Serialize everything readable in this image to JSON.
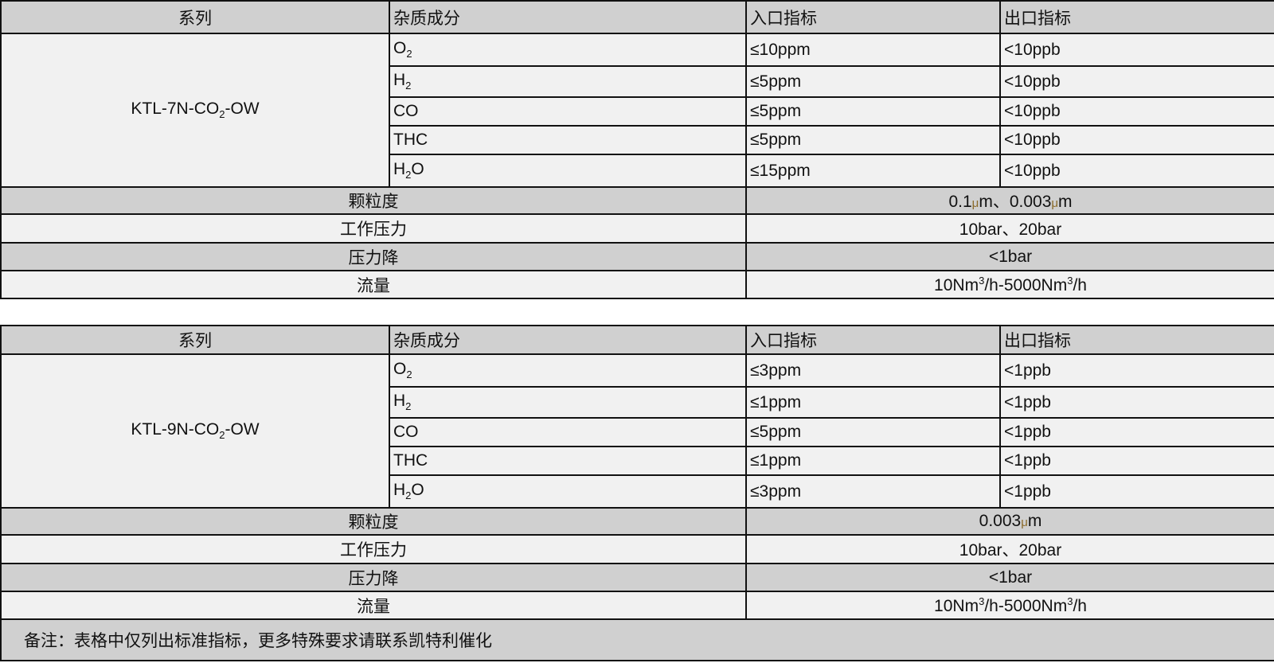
{
  "tables": [
    {
      "headers": [
        "系列",
        "杂质成分",
        "入口指标",
        "出口指标"
      ],
      "series": [
        {
          "t": "KTL-7N-CO"
        },
        {
          "t": "2",
          "s": "sub"
        },
        {
          "t": "-OW"
        }
      ],
      "impurities": [
        {
          "name": [
            {
              "t": "O"
            },
            {
              "t": "2",
              "s": "sub"
            }
          ],
          "inlet": "≤10ppm",
          "outlet": "<10ppb"
        },
        {
          "name": [
            {
              "t": "H"
            },
            {
              "t": "2",
              "s": "sub"
            }
          ],
          "inlet": "≤5ppm",
          "outlet": "<10ppb"
        },
        {
          "name": [
            {
              "t": "CO"
            }
          ],
          "inlet": "≤5ppm",
          "outlet": "<10ppb"
        },
        {
          "name": [
            {
              "t": "THC"
            }
          ],
          "inlet": "≤5ppm",
          "outlet": "<10ppb"
        },
        {
          "name": [
            {
              "t": "H"
            },
            {
              "t": "2",
              "s": "sub"
            },
            {
              "t": "O"
            }
          ],
          "inlet": "≤15ppm",
          "outlet": "<10ppb"
        }
      ],
      "specs": [
        {
          "label": "颗粒度",
          "value": [
            {
              "t": "0.1"
            },
            {
              "t": "μ",
              "s": "mu"
            },
            {
              "t": "m、0.003"
            },
            {
              "t": "μ",
              "s": "mu"
            },
            {
              "t": "m"
            }
          ]
        },
        {
          "label": "工作压力",
          "value": [
            {
              "t": "10bar、20bar"
            }
          ]
        },
        {
          "label": "压力降",
          "value": [
            {
              "t": "<1bar"
            }
          ]
        },
        {
          "label": "流量",
          "value": [
            {
              "t": "10Nm"
            },
            {
              "t": "3",
              "s": "sup"
            },
            {
              "t": "/h-5000Nm"
            },
            {
              "t": "3",
              "s": "sup"
            },
            {
              "t": "/h"
            }
          ]
        }
      ]
    },
    {
      "headers": [
        "系列",
        "杂质成分",
        "入口指标",
        "出口指标"
      ],
      "series": [
        {
          "t": "KTL-9N-CO"
        },
        {
          "t": "2",
          "s": "sub"
        },
        {
          "t": "-OW"
        }
      ],
      "impurities": [
        {
          "name": [
            {
              "t": "O"
            },
            {
              "t": "2",
              "s": "sub"
            }
          ],
          "inlet": "≤3ppm",
          "outlet": "<1ppb"
        },
        {
          "name": [
            {
              "t": "H"
            },
            {
              "t": "2",
              "s": "sub"
            }
          ],
          "inlet": "≤1ppm",
          "outlet": "<1ppb"
        },
        {
          "name": [
            {
              "t": "CO"
            }
          ],
          "inlet": "≤5ppm",
          "outlet": "<1ppb"
        },
        {
          "name": [
            {
              "t": "THC"
            }
          ],
          "inlet": "≤1ppm",
          "outlet": "<1ppb"
        },
        {
          "name": [
            {
              "t": "H"
            },
            {
              "t": "2",
              "s": "sub"
            },
            {
              "t": "O"
            }
          ],
          "inlet": "≤3ppm",
          "outlet": "<1ppb"
        }
      ],
      "specs": [
        {
          "label": "颗粒度",
          "value": [
            {
              "t": "0.003"
            },
            {
              "t": "μ",
              "s": "mu"
            },
            {
              "t": "m"
            }
          ]
        },
        {
          "label": "工作压力",
          "value": [
            {
              "t": "10bar、20bar"
            }
          ]
        },
        {
          "label": "压力降",
          "value": [
            {
              "t": "<1bar"
            }
          ]
        },
        {
          "label": "流量",
          "value": [
            {
              "t": "10Nm"
            },
            {
              "t": "3",
              "s": "sup"
            },
            {
              "t": "/h-5000Nm"
            },
            {
              "t": "3",
              "s": "sup"
            },
            {
              "t": "/h"
            }
          ]
        }
      ],
      "note": "备注：表格中仅列出标准指标，更多特殊要求请联系凯特利催化"
    }
  ]
}
